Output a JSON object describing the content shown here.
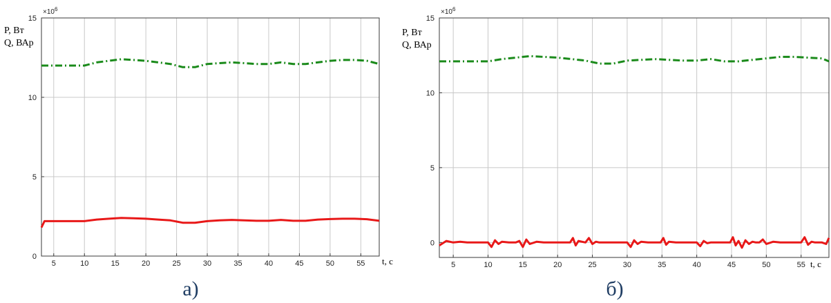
{
  "chart_data": [
    {
      "id": "a",
      "type": "line",
      "caption": "а)",
      "ylabel_lines": [
        "P, Вт",
        "Q, ВАр"
      ],
      "xlabel": "t, c",
      "exponent_label": "×10",
      "exponent_power": "6",
      "xlim": [
        3,
        58
      ],
      "ylim": [
        0,
        15
      ],
      "xticks": [
        5,
        10,
        15,
        20,
        25,
        30,
        35,
        40,
        45,
        50,
        55
      ],
      "yticks": [
        0,
        5,
        10,
        15
      ],
      "grid": true,
      "series": [
        {
          "color": "#1a8a1a",
          "style": "dash-dot",
          "x": [
            3,
            10,
            12,
            14,
            16,
            18,
            20,
            22,
            24,
            26,
            28,
            30,
            32,
            34,
            36,
            38,
            40,
            42,
            44,
            46,
            48,
            50,
            52,
            54,
            56,
            58
          ],
          "y": [
            12.0,
            12.0,
            12.2,
            12.3,
            12.4,
            12.35,
            12.3,
            12.2,
            12.1,
            11.9,
            11.9,
            12.1,
            12.15,
            12.2,
            12.15,
            12.1,
            12.1,
            12.2,
            12.1,
            12.1,
            12.2,
            12.3,
            12.35,
            12.35,
            12.3,
            12.1
          ]
        },
        {
          "color": "#e81818",
          "style": "solid",
          "x": [
            3,
            3.5,
            10,
            12,
            14,
            16,
            18,
            20,
            22,
            24,
            26,
            28,
            30,
            32,
            34,
            36,
            38,
            40,
            42,
            44,
            46,
            48,
            50,
            52,
            54,
            56,
            58
          ],
          "y": [
            1.8,
            2.2,
            2.2,
            2.3,
            2.35,
            2.4,
            2.38,
            2.35,
            2.3,
            2.25,
            2.1,
            2.1,
            2.2,
            2.25,
            2.28,
            2.25,
            2.22,
            2.22,
            2.28,
            2.22,
            2.22,
            2.3,
            2.33,
            2.35,
            2.35,
            2.32,
            2.22
          ]
        }
      ]
    },
    {
      "id": "b",
      "type": "line",
      "caption": "б)",
      "ylabel_lines": [
        "P, Вт",
        "Q, ВАр"
      ],
      "xlabel": "t, c",
      "exponent_label": "×10",
      "exponent_power": "6",
      "xlim": [
        3,
        59
      ],
      "ylim": [
        -1,
        15
      ],
      "xticks": [
        5,
        10,
        15,
        20,
        25,
        30,
        35,
        40,
        45,
        50,
        55
      ],
      "yticks": [
        0,
        5,
        10,
        15
      ],
      "grid": true,
      "series": [
        {
          "color": "#1a8a1a",
          "style": "dash-dot",
          "x": [
            3,
            10,
            12,
            14,
            16,
            18,
            20,
            22,
            24,
            26,
            28,
            30,
            32,
            34,
            36,
            38,
            40,
            42,
            44,
            46,
            48,
            50,
            52,
            54,
            56,
            58,
            59
          ],
          "y": [
            12.1,
            12.1,
            12.25,
            12.35,
            12.45,
            12.4,
            12.35,
            12.25,
            12.15,
            11.95,
            11.95,
            12.15,
            12.2,
            12.25,
            12.2,
            12.15,
            12.15,
            12.25,
            12.1,
            12.1,
            12.2,
            12.3,
            12.4,
            12.4,
            12.35,
            12.3,
            12.1
          ]
        },
        {
          "color": "#e81818",
          "style": "solid",
          "x": [
            3,
            4,
            5,
            6,
            7,
            8,
            9,
            10,
            10.5,
            11,
            11.5,
            12,
            13,
            14,
            14.5,
            15,
            15.5,
            16,
            17,
            18,
            19,
            20,
            21,
            21.8,
            22.2,
            22.6,
            23,
            24,
            24.5,
            25,
            25.5,
            26,
            27,
            28,
            29,
            30,
            30.5,
            31,
            31.5,
            32,
            33,
            34,
            34.8,
            35.2,
            35.6,
            36,
            37,
            38,
            39,
            40,
            40.5,
            41,
            41.5,
            42,
            43,
            44,
            44.8,
            45.2,
            45.6,
            46,
            46.5,
            47,
            47.5,
            48,
            48.5,
            49,
            49.5,
            50,
            51,
            52,
            53,
            54,
            55,
            55.5,
            56,
            56.5,
            57,
            58,
            58.6,
            59
          ],
          "y": [
            -0.2,
            0.1,
            0.0,
            0.05,
            0.0,
            0.0,
            0.0,
            0.0,
            -0.3,
            0.15,
            -0.1,
            0.05,
            0.0,
            0.0,
            0.1,
            -0.3,
            0.2,
            -0.1,
            0.05,
            0.0,
            0.0,
            0.0,
            0.0,
            0.0,
            0.3,
            -0.2,
            0.1,
            0.0,
            0.3,
            -0.1,
            0.05,
            0.0,
            0.0,
            0.0,
            0.0,
            0.0,
            -0.3,
            0.15,
            -0.1,
            0.05,
            0.0,
            0.0,
            0.0,
            0.3,
            -0.15,
            0.05,
            0.0,
            0.0,
            0.0,
            0.0,
            -0.25,
            0.1,
            -0.05,
            0.0,
            0.0,
            0.0,
            0.0,
            0.35,
            -0.2,
            0.1,
            -0.35,
            0.15,
            -0.1,
            0.05,
            0.0,
            0.0,
            0.2,
            -0.1,
            0.05,
            0.0,
            0.0,
            0.0,
            0.0,
            0.35,
            -0.15,
            0.05,
            0.0,
            0.0,
            -0.1,
            0.3
          ]
        }
      ]
    }
  ]
}
